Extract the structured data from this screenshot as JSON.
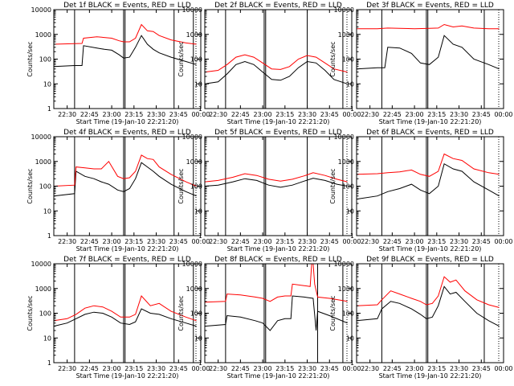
{
  "figure": {
    "background": "#ffffff",
    "events_color": "#000000",
    "lld_color": "#ff0000",
    "xlabel": "Start Time (19-Jan-10 22:21:20)",
    "ylabel": "Counts/sec"
  },
  "chart_data": [
    {
      "type": "line",
      "title": "Det 1f BLACK = Events, RED = LLD",
      "ylabel": "Counts/sec",
      "xlabel": "Start Time (19-Jan-10 22:21:20)",
      "x_ticks": [
        "22:30",
        "22:45",
        "23:00",
        "23:15",
        "23:30",
        "23:45",
        "00:00"
      ],
      "y_ticks": [
        "1",
        "10",
        "100",
        "1000",
        "10000"
      ],
      "y_scale": "log",
      "ylim": [
        1,
        10000
      ],
      "xlim": [
        "22:21",
        "00:00"
      ],
      "series": [
        {
          "color": "#000000",
          "x": [
            "22:21",
            "22:35",
            "22:40",
            "22:41",
            "22:50",
            "22:55",
            "23:00",
            "23:05",
            "23:08",
            "23:12",
            "23:16",
            "23:20",
            "23:24",
            "23:28",
            "23:32",
            "23:40",
            "23:50",
            "23:57"
          ],
          "values": [
            50,
            55,
            55,
            350,
            280,
            250,
            230,
            150,
            110,
            120,
            300,
            900,
            400,
            250,
            180,
            120,
            80,
            60
          ]
        },
        {
          "color": "#ff0000",
          "x": [
            "22:21",
            "22:35",
            "22:40",
            "22:41",
            "22:50",
            "22:55",
            "23:00",
            "23:05",
            "23:08",
            "23:12",
            "23:16",
            "23:20",
            "23:24",
            "23:28",
            "23:32",
            "23:40",
            "23:50",
            "23:57"
          ],
          "values": [
            400,
            420,
            430,
            700,
            800,
            750,
            700,
            550,
            500,
            500,
            700,
            2500,
            1400,
            1300,
            900,
            600,
            450,
            400
          ]
        }
      ],
      "vertical_markers": [
        "22:35",
        "23:08",
        "23:09",
        "23:42",
        "23:55"
      ]
    },
    {
      "type": "line",
      "title": "Det 2f BLACK = Events, RED = LLD",
      "ylabel": "Counts/sec",
      "xlabel": "Start Time (19-Jan-10 22:21:20)",
      "x_ticks": [
        "22:30",
        "22:45",
        "23:00",
        "23:15",
        "23:30",
        "23:45",
        "00:00"
      ],
      "y_ticks": [
        "1",
        "10",
        "100",
        "1000",
        "10000"
      ],
      "y_scale": "log",
      "ylim": [
        1,
        10000
      ],
      "xlim": [
        "22:21",
        "00:00"
      ],
      "series": [
        {
          "color": "#000000",
          "x": [
            "22:21",
            "22:30",
            "22:36",
            "22:42",
            "22:48",
            "22:54",
            "23:00",
            "23:06",
            "23:12",
            "23:18",
            "23:24",
            "23:30",
            "23:36",
            "23:42",
            "23:48",
            "23:57"
          ],
          "values": [
            10,
            12,
            25,
            60,
            80,
            60,
            30,
            15,
            14,
            20,
            45,
            80,
            70,
            35,
            15,
            10
          ]
        },
        {
          "color": "#ff0000",
          "x": [
            "22:21",
            "22:30",
            "22:36",
            "22:42",
            "22:48",
            "22:54",
            "23:00",
            "23:06",
            "23:12",
            "23:18",
            "23:24",
            "23:30",
            "23:36",
            "23:42",
            "23:48",
            "23:57"
          ],
          "values": [
            30,
            35,
            60,
            120,
            150,
            120,
            70,
            40,
            38,
            50,
            100,
            140,
            120,
            70,
            40,
            30
          ]
        }
      ],
      "vertical_markers": [
        "22:35",
        "23:01",
        "23:02",
        "23:30",
        "23:54"
      ]
    },
    {
      "type": "line",
      "title": "Det 3f BLACK = Events, RED = LLD",
      "ylabel": "Counts/sec",
      "xlabel": "Start Time (19-Jan-10 22:21:20)",
      "x_ticks": [
        "22:30",
        "22:45",
        "23:00",
        "23:15",
        "23:30",
        "23:45",
        "00:00"
      ],
      "y_ticks": [
        "1",
        "10",
        "100",
        "1000",
        "10000"
      ],
      "y_scale": "log",
      "ylim": [
        1,
        10000
      ],
      "xlim": [
        "22:21",
        "00:00"
      ],
      "series": [
        {
          "color": "#000000",
          "x": [
            "22:21",
            "22:35",
            "22:40",
            "22:42",
            "22:50",
            "22:58",
            "23:04",
            "23:10",
            "23:16",
            "23:20",
            "23:26",
            "23:32",
            "23:40",
            "23:50",
            "23:57"
          ],
          "values": [
            40,
            45,
            45,
            300,
            280,
            170,
            70,
            60,
            120,
            900,
            400,
            300,
            100,
            60,
            40
          ]
        },
        {
          "color": "#ff0000",
          "x": [
            "22:21",
            "22:35",
            "22:42",
            "22:50",
            "23:00",
            "23:10",
            "23:16",
            "23:20",
            "23:26",
            "23:32",
            "23:40",
            "23:50",
            "23:57"
          ],
          "values": [
            1700,
            1700,
            1800,
            1750,
            1700,
            1750,
            1800,
            2500,
            2000,
            2200,
            1800,
            1700,
            1700
          ]
        }
      ],
      "vertical_markers": [
        "22:38",
        "23:08",
        "23:09",
        "23:47"
      ]
    },
    {
      "type": "line",
      "title": "Det 4f BLACK = Events, RED = LLD",
      "ylabel": "Counts/sec",
      "xlabel": "Start Time (19-Jan-10 22:21:20)",
      "x_ticks": [
        "22:30",
        "22:45",
        "23:00",
        "23:15",
        "23:30",
        "23:45",
        "00:00"
      ],
      "y_ticks": [
        "1",
        "10",
        "100",
        "1000",
        "10000"
      ],
      "y_scale": "log",
      "ylim": [
        1,
        10000
      ],
      "xlim": [
        "22:21",
        "00:00"
      ],
      "series": [
        {
          "color": "#000000",
          "x": [
            "22:21",
            "22:35",
            "22:36",
            "22:42",
            "22:48",
            "22:53",
            "22:58",
            "23:04",
            "23:08",
            "23:12",
            "23:16",
            "23:20",
            "23:24",
            "23:28",
            "23:32",
            "23:40",
            "23:50",
            "23:57"
          ],
          "values": [
            40,
            50,
            400,
            250,
            200,
            150,
            120,
            70,
            60,
            80,
            200,
            900,
            600,
            400,
            250,
            120,
            60,
            40
          ]
        },
        {
          "color": "#ff0000",
          "x": [
            "22:21",
            "22:35",
            "22:36",
            "22:42",
            "22:48",
            "22:53",
            "22:58",
            "23:04",
            "23:08",
            "23:12",
            "23:16",
            "23:20",
            "23:24",
            "23:28",
            "23:32",
            "23:40",
            "23:50",
            "23:57"
          ],
          "values": [
            100,
            110,
            600,
            550,
            500,
            500,
            1000,
            250,
            200,
            220,
            400,
            1800,
            1300,
            1200,
            600,
            300,
            150,
            100
          ]
        }
      ],
      "vertical_markers": [
        "22:35",
        "23:08",
        "23:09",
        "23:42",
        "23:55"
      ]
    },
    {
      "type": "line",
      "title": "Det 5f BLACK = Events, RED = LLD",
      "ylabel": "Counts/sec",
      "xlabel": "Start Time (19-Jan-10 22:21:20)",
      "x_ticks": [
        "22:30",
        "22:45",
        "23:00",
        "23:15",
        "23:30",
        "23:45",
        "00:00"
      ],
      "y_ticks": [
        "1",
        "10",
        "100",
        "1000",
        "10000"
      ],
      "y_scale": "log",
      "ylim": [
        1,
        10000
      ],
      "xlim": [
        "22:21",
        "00:00"
      ],
      "series": [
        {
          "color": "#000000",
          "x": [
            "22:21",
            "22:30",
            "22:40",
            "22:48",
            "22:56",
            "23:04",
            "23:12",
            "23:20",
            "23:28",
            "23:34",
            "23:42",
            "23:50",
            "23:57"
          ],
          "values": [
            100,
            110,
            150,
            200,
            170,
            110,
            90,
            110,
            160,
            210,
            170,
            120,
            100
          ]
        },
        {
          "color": "#ff0000",
          "x": [
            "22:21",
            "22:30",
            "22:40",
            "22:48",
            "22:56",
            "23:04",
            "23:12",
            "23:20",
            "23:28",
            "23:34",
            "23:42",
            "23:50",
            "23:57"
          ],
          "values": [
            150,
            170,
            230,
            320,
            270,
            190,
            160,
            190,
            260,
            350,
            270,
            190,
            150
          ]
        }
      ],
      "vertical_markers": [
        "22:35",
        "23:01",
        "23:02",
        "23:30",
        "23:54"
      ]
    },
    {
      "type": "line",
      "title": "Det 6f BLACK = Events, RED = LLD",
      "ylabel": "Counts/sec",
      "xlabel": "Start Time (19-Jan-10 22:21:20)",
      "x_ticks": [
        "22:30",
        "22:45",
        "23:00",
        "23:15",
        "23:30",
        "23:45",
        "00:00"
      ],
      "y_ticks": [
        "1",
        "10",
        "100",
        "1000",
        "10000"
      ],
      "y_scale": "log",
      "ylim": [
        1,
        10000
      ],
      "xlim": [
        "22:21",
        "00:00"
      ],
      "series": [
        {
          "color": "#000000",
          "x": [
            "22:21",
            "22:35",
            "22:42",
            "22:50",
            "22:58",
            "23:04",
            "23:10",
            "23:16",
            "23:20",
            "23:26",
            "23:32",
            "23:40",
            "23:50",
            "23:57"
          ],
          "values": [
            30,
            40,
            60,
            80,
            120,
            70,
            50,
            100,
            800,
            500,
            400,
            150,
            70,
            40
          ]
        },
        {
          "color": "#ff0000",
          "x": [
            "22:21",
            "22:35",
            "22:42",
            "22:50",
            "22:58",
            "23:04",
            "23:10",
            "23:16",
            "23:20",
            "23:26",
            "23:32",
            "23:40",
            "23:50",
            "23:57"
          ],
          "values": [
            300,
            320,
            350,
            380,
            450,
            300,
            250,
            400,
            2000,
            1300,
            1100,
            500,
            350,
            300
          ]
        }
      ],
      "vertical_markers": [
        "22:38",
        "23:08",
        "23:09",
        "23:47"
      ]
    },
    {
      "type": "line",
      "title": "Det 7f BLACK = Events, RED = LLD",
      "ylabel": "Counts/sec",
      "xlabel": "Start Time (19-Jan-10 22:21:20)",
      "x_ticks": [
        "22:30",
        "22:45",
        "23:00",
        "23:15",
        "23:30",
        "23:45",
        "00:00"
      ],
      "y_ticks": [
        "1",
        "10",
        "100",
        "1000",
        "10000"
      ],
      "y_scale": "log",
      "ylim": [
        1,
        10000
      ],
      "xlim": [
        "22:21",
        "00:00"
      ],
      "series": [
        {
          "color": "#000000",
          "x": [
            "22:21",
            "22:30",
            "22:36",
            "22:42",
            "22:48",
            "22:54",
            "23:00",
            "23:06",
            "23:12",
            "23:16",
            "23:20",
            "23:26",
            "23:32",
            "23:40",
            "23:50",
            "23:57"
          ],
          "values": [
            30,
            40,
            60,
            90,
            110,
            100,
            70,
            40,
            35,
            45,
            150,
            100,
            90,
            60,
            40,
            30
          ]
        },
        {
          "color": "#ff0000",
          "x": [
            "22:21",
            "22:30",
            "22:36",
            "22:42",
            "22:48",
            "22:54",
            "23:00",
            "23:06",
            "23:12",
            "23:16",
            "23:20",
            "23:26",
            "23:32",
            "23:40",
            "23:50",
            "23:57"
          ],
          "values": [
            50,
            60,
            90,
            160,
            200,
            180,
            120,
            70,
            70,
            90,
            500,
            200,
            250,
            120,
            70,
            50
          ]
        }
      ],
      "vertical_markers": [
        "22:35",
        "23:08",
        "23:09",
        "23:42",
        "23:55"
      ]
    },
    {
      "type": "line",
      "title": "Det 8f BLACK = Events, RED = LLD",
      "ylabel": "Counts/sec",
      "xlabel": "Start Time (19-Jan-10 22:21:20)",
      "x_ticks": [
        "22:30",
        "22:45",
        "23:00",
        "23:15",
        "23:30",
        "23:45",
        "00:00"
      ],
      "y_ticks": [
        "1",
        "10",
        "100",
        "1000",
        "10000"
      ],
      "y_scale": "log",
      "ylim": [
        1,
        10000
      ],
      "xlim": [
        "22:21",
        "00:00"
      ],
      "series": [
        {
          "color": "#000000",
          "x": [
            "22:21",
            "22:35",
            "22:36",
            "22:45",
            "22:55",
            "23:00",
            "23:05",
            "23:10",
            "23:15",
            "23:19",
            "23:20",
            "23:28",
            "23:34",
            "23:36",
            "23:37",
            "23:45",
            "23:57"
          ],
          "values": [
            30,
            35,
            80,
            70,
            50,
            40,
            20,
            50,
            60,
            60,
            500,
            450,
            400,
            20,
            120,
            80,
            40
          ]
        },
        {
          "color": "#ff0000",
          "x": [
            "22:21",
            "22:35",
            "22:36",
            "22:45",
            "22:55",
            "23:00",
            "23:05",
            "23:10",
            "23:15",
            "23:19",
            "23:20",
            "23:28",
            "23:32",
            "23:33",
            "23:34",
            "23:35",
            "23:37",
            "23:45",
            "23:57"
          ],
          "values": [
            280,
            300,
            600,
            550,
            450,
            400,
            300,
            450,
            500,
            500,
            1500,
            1300,
            1200,
            10000,
            10000,
            1500,
            450,
            400,
            300
          ]
        }
      ],
      "vertical_markers": [
        "22:35",
        "23:01",
        "23:02",
        "23:37",
        "23:54"
      ]
    },
    {
      "type": "line",
      "title": "Det 9f BLACK = Events, RED = LLD",
      "ylabel": "Counts/sec",
      "xlabel": "Start Time (19-Jan-10 22:21:20)",
      "x_ticks": [
        "22:30",
        "22:45",
        "23:00",
        "23:15",
        "23:30",
        "23:45",
        "00:00"
      ],
      "y_ticks": [
        "1",
        "10",
        "100",
        "1000",
        "10000"
      ],
      "y_scale": "log",
      "ylim": [
        1,
        10000
      ],
      "xlim": [
        "22:21",
        "00:00"
      ],
      "series": [
        {
          "color": "#000000",
          "x": [
            "22:21",
            "22:35",
            "22:38",
            "22:44",
            "22:50",
            "22:58",
            "23:04",
            "23:08",
            "23:12",
            "23:16",
            "23:20",
            "23:24",
            "23:28",
            "23:34",
            "23:42",
            "23:50",
            "23:57"
          ],
          "values": [
            50,
            60,
            150,
            300,
            250,
            150,
            90,
            60,
            70,
            200,
            1200,
            600,
            700,
            300,
            100,
            50,
            30
          ]
        },
        {
          "color": "#ff0000",
          "x": [
            "22:21",
            "22:35",
            "22:38",
            "22:44",
            "22:50",
            "22:58",
            "23:04",
            "23:08",
            "23:12",
            "23:16",
            "23:20",
            "23:24",
            "23:28",
            "23:34",
            "23:42",
            "23:50",
            "23:57"
          ],
          "values": [
            200,
            220,
            350,
            800,
            600,
            400,
            300,
            220,
            250,
            500,
            3000,
            1800,
            2200,
            800,
            350,
            220,
            170
          ]
        }
      ],
      "vertical_markers": [
        "22:38",
        "23:08",
        "23:09",
        "23:47"
      ]
    }
  ]
}
